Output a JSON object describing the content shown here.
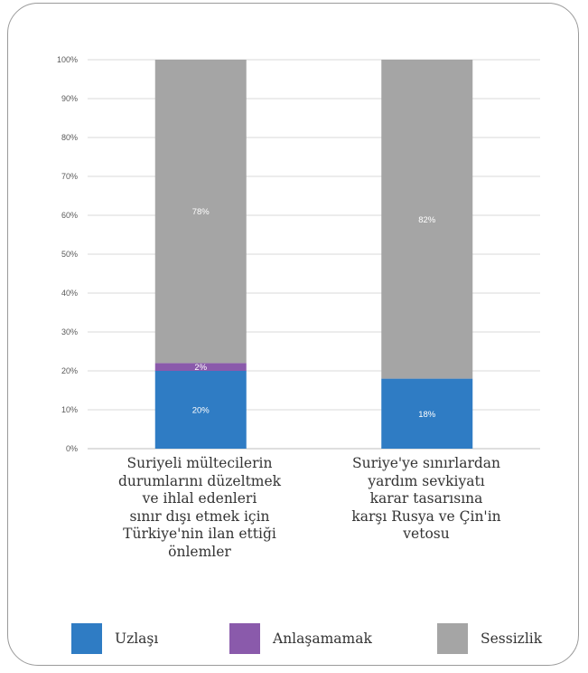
{
  "chart_data": {
    "type": "bar",
    "stacked": true,
    "stack_mode": "percent",
    "categories": [
      "Suriyeli mültecilerin durumlarını düzeltmek ve ihlal edenleri sınır dışı etmek için Türkiye'nin ilan ettiği önlemler",
      "Suriye'ye sınırlardan yardım sevkiyatı karar tasarısına karşı Rusya ve Çin'in vetosu"
    ],
    "category_lines": [
      [
        "Suriyeli mültecilerin",
        "durumlarını düzeltmek",
        "ve ihlal edenleri",
        "sınır dışı etmek için",
        "Türkiye'nin ilan ettiği",
        "önlemler"
      ],
      [
        "Suriye'ye sınırlardan",
        "yardım sevkiyatı",
        "karar tasarısına",
        "karşı Rusya ve Çin'in",
        "vetosu"
      ]
    ],
    "series": [
      {
        "name": "Uzlaşı",
        "color": "#2f7cc4",
        "values": [
          20,
          18
        ],
        "labels": [
          "20%",
          "18%"
        ]
      },
      {
        "name": "Anlaşamamak",
        "color": "#8a5aab",
        "values": [
          2,
          0
        ],
        "labels": [
          "2%",
          ""
        ]
      },
      {
        "name": "Sessizlik",
        "color": "#a5a5a5",
        "values": [
          78,
          82
        ],
        "labels": [
          "78%",
          "82%"
        ]
      }
    ],
    "ylim": [
      0,
      100
    ],
    "yticks": [
      "0%",
      "10%",
      "20%",
      "30%",
      "40%",
      "50%",
      "60%",
      "70%",
      "80%",
      "90%",
      "100%"
    ],
    "grid": true,
    "legend_position": "bottom"
  }
}
